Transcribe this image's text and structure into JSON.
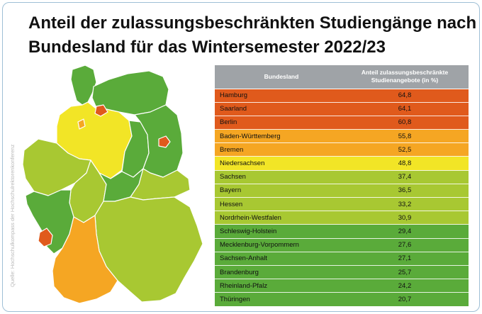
{
  "title_line1": "Anteil der zulassungsbeschränkten Studiengänge nach",
  "title_line2": "Bundesland für das Wintersemester 2022/23",
  "source": "Quelle: Hochschulkompass der Hochschulrektorenkonferenz",
  "colors": {
    "tier_red": "#e05a1c",
    "tier_orange": "#f5a623",
    "tier_yellow": "#f2e526",
    "tier_lime": "#a8c832",
    "tier_green": "#5aab3a",
    "header": "#9fa3a7"
  },
  "chart_data": {
    "type": "table",
    "columns": [
      "Bundesland",
      "Anteil zulassungsbeschränkte Studienangebote (in %)"
    ],
    "rows": [
      {
        "name": "Hamburg",
        "value": "64,8",
        "tier": "red"
      },
      {
        "name": "Saarland",
        "value": "64,1",
        "tier": "red"
      },
      {
        "name": "Berlin",
        "value": "60,8",
        "tier": "red"
      },
      {
        "name": "Baden-Württemberg",
        "value": "55,8",
        "tier": "orange"
      },
      {
        "name": "Bremen",
        "value": "52,5",
        "tier": "orange"
      },
      {
        "name": "Niedersachsen",
        "value": "48,8",
        "tier": "yellow"
      },
      {
        "name": "Sachsen",
        "value": "37,4",
        "tier": "lime"
      },
      {
        "name": "Bayern",
        "value": "36,5",
        "tier": "lime"
      },
      {
        "name": "Hessen",
        "value": "33,2",
        "tier": "lime"
      },
      {
        "name": "Nordrhein-Westfalen",
        "value": "30,9",
        "tier": "lime"
      },
      {
        "name": "Schleswig-Holstein",
        "value": "29,4",
        "tier": "green"
      },
      {
        "name": "Mecklenburg-Vorpommern",
        "value": "27,6",
        "tier": "green"
      },
      {
        "name": "Sachsen-Anhalt",
        "value": "27,1",
        "tier": "green"
      },
      {
        "name": "Brandenburg",
        "value": "25,7",
        "tier": "green"
      },
      {
        "name": "Rheinland-Pfalz",
        "value": "24,2",
        "tier": "green"
      },
      {
        "name": "Thüringen",
        "value": "20,7",
        "tier": "green"
      }
    ]
  }
}
